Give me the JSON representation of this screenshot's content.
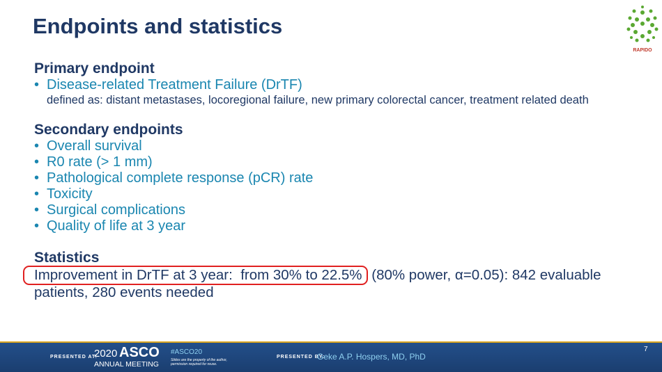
{
  "header": {
    "title": "Endpoints and statistics",
    "logo": "RAPIDO"
  },
  "primary": {
    "heading": "Primary endpoint",
    "items": [
      "Disease-related Treatment Failure (DrTF)"
    ],
    "definition": "defined as: distant metastases, locoregional failure, new primary colorectal cancer, treatment related death"
  },
  "secondary": {
    "heading": "Secondary endpoints",
    "items": [
      "Overall survival",
      "R0 rate (> 1 mm)",
      "Pathological complete response (pCR) rate",
      "Toxicity",
      "Surgical complications",
      "Quality of life at 3 year"
    ]
  },
  "statistics": {
    "heading": "Statistics",
    "highlight": "Improvement in DrTF at 3 year:  from 30% to 22.5%",
    "rest": " (80% power, α=0.05): 842 evaluable patients, 280 events needed"
  },
  "footer": {
    "presented_at": "PRESENTED AT:",
    "year": "2020",
    "asco": "ASCO",
    "meeting": "ANNUAL MEETING",
    "hashtag": "#ASCO20",
    "disclaimer": "Slides are the property of the author, permission required for reuse.",
    "presented_by": "PRESENTED BY:",
    "presenter": "Geke A.P. Hospers, MD, PhD",
    "page": "7"
  }
}
